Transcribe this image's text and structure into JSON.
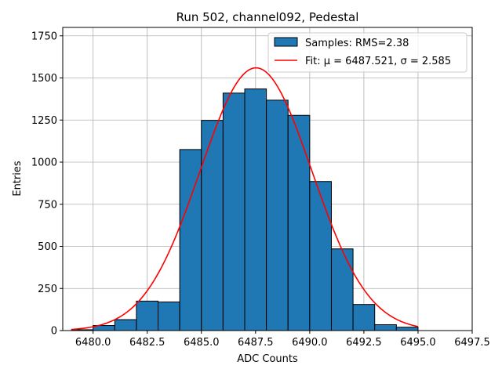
{
  "chart_data": {
    "type": "bar",
    "title": "Run 502, channel092, Pedestal",
    "xlabel": "ADC Counts",
    "ylabel": "Entries",
    "xlim": [
      6478.6,
      6497.5
    ],
    "ylim": [
      0,
      1800
    ],
    "xticks": [
      6480.0,
      6482.5,
      6485.0,
      6487.5,
      6490.0,
      6492.5,
      6495.0,
      6497.5
    ],
    "xtick_labels": [
      "6480.0",
      "6482.5",
      "6485.0",
      "6487.5",
      "6490.0",
      "6492.5",
      "6495.0",
      "6497.5"
    ],
    "yticks": [
      0,
      250,
      500,
      750,
      1000,
      1250,
      1500,
      1750
    ],
    "ytick_labels": [
      "0",
      "250",
      "500",
      "750",
      "1000",
      "1250",
      "1500",
      "1750"
    ],
    "grid": true,
    "legend_position": "top-right",
    "bins": {
      "edges": [
        6479,
        6480,
        6481,
        6482,
        6483,
        6484,
        6485,
        6486,
        6487,
        6488,
        6489,
        6490,
        6491,
        6492,
        6493,
        6494,
        6495
      ],
      "counts": [
        5,
        30,
        65,
        175,
        170,
        1075,
        1248,
        1410,
        1435,
        1368,
        1278,
        885,
        485,
        155,
        35,
        20
      ]
    },
    "fit": {
      "mu": 6487.521,
      "sigma": 2.585,
      "amplitude": 1560,
      "x_range": [
        6479,
        6495
      ]
    },
    "colors": {
      "bar_fill": "#1f77b4",
      "bar_edge": "#000000",
      "fit_line": "#ff0000",
      "grid": "#b0b0b0"
    },
    "legend": [
      {
        "kind": "patch",
        "label": "Samples: RMS=2.38"
      },
      {
        "kind": "line",
        "label": "Fit: μ = 6487.521, σ = 2.585"
      }
    ]
  }
}
